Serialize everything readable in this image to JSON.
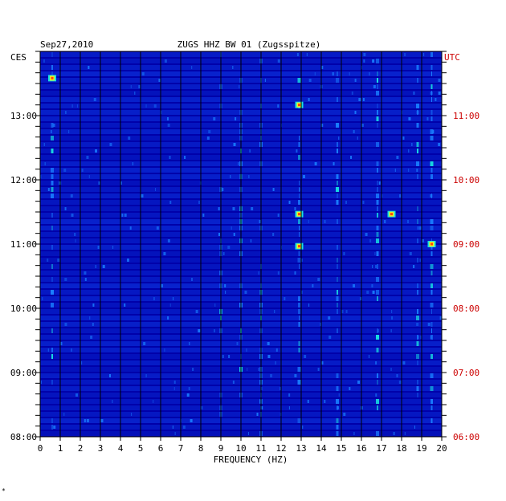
{
  "header": {
    "date": "Sep27,2010",
    "station": "ZUGS HHZ BW 01 (Zugsspitze)",
    "left_tz": "CES",
    "right_tz": "UTC"
  },
  "footer": {
    "mark": "*"
  },
  "colors": {
    "background": "#0000aa",
    "band": "#0a2bd6",
    "gridline": "#000000",
    "left_labels": "#000000",
    "right_labels": "#cc0000",
    "hot_low": "#1a7fff",
    "hot_mid": "#18e0e0",
    "hot_high": "#f0f020",
    "hot_peak": "#ff4010"
  },
  "chart_data": {
    "type": "heatmap",
    "title": "ZUGS HHZ BW 01 (Zugsspitze)",
    "subtitle": "Sep27,2010",
    "xlabel": "FREQUENCY (HZ)",
    "x_ticks": [
      "0",
      "1",
      "2",
      "3",
      "4",
      "5",
      "6",
      "7",
      "8",
      "9",
      "10",
      "11",
      "12",
      "13",
      "14",
      "15",
      "16",
      "17",
      "18",
      "19",
      "20"
    ],
    "xlim": [
      0,
      20
    ],
    "left_axis_label": "CES",
    "left_ticks": [
      "08:00",
      "09:00",
      "10:00",
      "11:00",
      "12:00",
      "13:00"
    ],
    "right_axis_label": "UTC",
    "right_ticks": [
      "06:00",
      "07:00",
      "08:00",
      "09:00",
      "10:00",
      "11:00"
    ],
    "time_range_hours": [
      8.0,
      14.0
    ],
    "grid": true,
    "energy_columns_hz": [
      0.6,
      9.0,
      10.0,
      11.0,
      12.9,
      14.8,
      16.8,
      18.8,
      19.5
    ],
    "strong_events": [
      {
        "freq_hz": 0.6,
        "time": "13:35"
      },
      {
        "freq_hz": 12.9,
        "time": "13:10"
      },
      {
        "freq_hz": 12.9,
        "time": "11:28"
      },
      {
        "freq_hz": 12.9,
        "time": "10:58"
      },
      {
        "freq_hz": 19.5,
        "time": "11:00"
      },
      {
        "freq_hz": 17.5,
        "time": "11:28"
      }
    ]
  }
}
